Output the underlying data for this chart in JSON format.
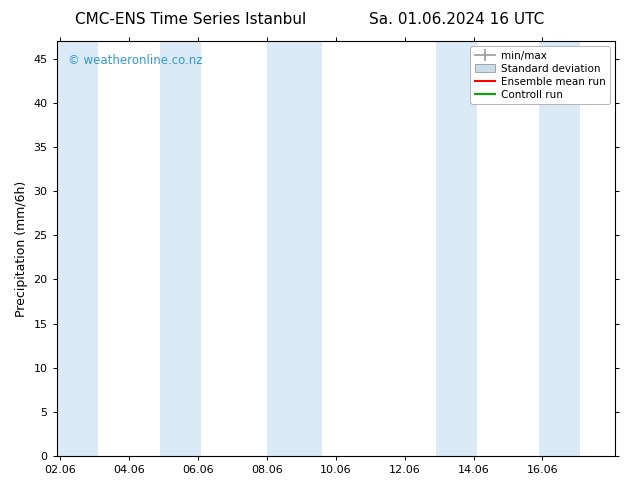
{
  "title_left": "CMC-ENS Time Series Istanbul",
  "title_right": "Sa. 01.06.2024 16 UTC",
  "ylabel": "Precipitation (mm/6h)",
  "xlabel": "",
  "xtick_labels": [
    "02.06",
    "04.06",
    "06.06",
    "08.06",
    "10.06",
    "12.06",
    "14.06",
    "16.06"
  ],
  "yticks": [
    0,
    5,
    10,
    15,
    20,
    25,
    30,
    35,
    40,
    45
  ],
  "ylim": [
    0,
    47
  ],
  "xlim": [
    0,
    8
  ],
  "bg_color": "#ffffff",
  "plot_bg_color": "#ffffff",
  "shaded_band_color": "#daeaf7",
  "watermark_text": "© weatheronline.co.nz",
  "watermark_color": "#3399cc",
  "legend_labels": [
    "min/max",
    "Standard deviation",
    "Ensemble mean run",
    "Controll run"
  ],
  "minmax_color": "#999999",
  "std_color": "#c8dcea",
  "ensemble_color": "#ff0000",
  "control_color": "#00aa00",
  "shaded_x_ranges": [
    [
      -0.05,
      0.55
    ],
    [
      1.45,
      2.05
    ],
    [
      3.0,
      3.8
    ],
    [
      5.45,
      6.05
    ],
    [
      6.95,
      7.55
    ]
  ],
  "tick_fontsize": 8,
  "label_fontsize": 9,
  "title_fontsize": 11
}
